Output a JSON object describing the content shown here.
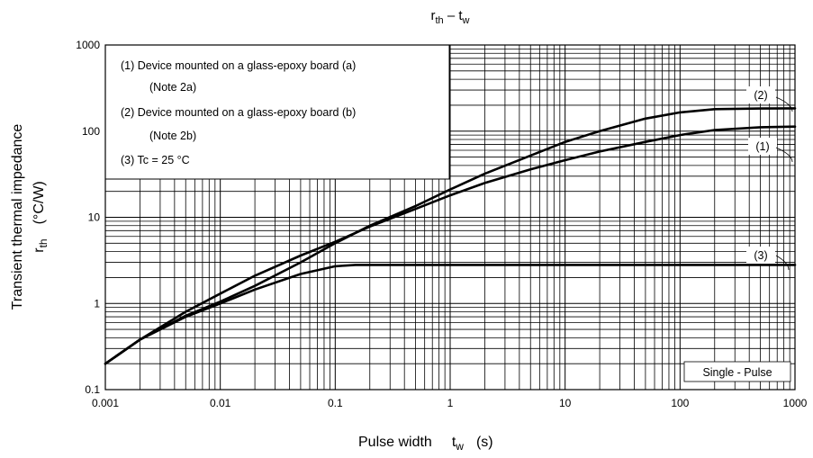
{
  "chart_data": {
    "type": "line",
    "title": "r",
    "title_sub1": "th",
    "title_sep": " – t",
    "title_sub2": "w",
    "xlabel": "Pulse width",
    "xlabel_sym": "t",
    "xlabel_sub": "w",
    "xlabel_unit": "(s)",
    "ylabel_line1": "Transient thermal impedance",
    "ylabel_line2_sym": "r",
    "ylabel_line2_sub": "th",
    "ylabel_line2_unit": "(°C/W)",
    "xscale": "log",
    "yscale": "log",
    "xlim": [
      0.001,
      1000
    ],
    "ylim": [
      0.1,
      1000
    ],
    "grid": true,
    "x_ticks": [
      "0.001",
      "0.01",
      "0.1",
      "1",
      "10",
      "100",
      "1000"
    ],
    "y_ticks": [
      "0.1",
      "1",
      "10",
      "100",
      "1000"
    ],
    "legend_box": {
      "placement": "top-left",
      "lines": [
        "(1) Device mounted on a glass-epoxy board (a)",
        "(Note 2a)",
        "(2) Device mounted on a glass-epoxy board (b)",
        "(Note 2b)",
        "(3) Tc = 25 °C"
      ]
    },
    "annotation": "Single - Pulse",
    "series": [
      {
        "name": "(1)",
        "x": [
          0.001,
          0.002,
          0.005,
          0.01,
          0.02,
          0.05,
          0.1,
          0.2,
          0.5,
          1,
          2,
          5,
          10,
          20,
          50,
          100,
          200,
          500,
          1000
        ],
        "y": [
          0.2,
          0.38,
          0.8,
          1.3,
          2.1,
          3.6,
          5.2,
          7.8,
          12.5,
          18,
          25,
          36,
          46,
          58,
          75,
          90,
          103,
          111,
          113
        ]
      },
      {
        "name": "(2)",
        "x": [
          0.001,
          0.002,
          0.005,
          0.01,
          0.02,
          0.05,
          0.1,
          0.2,
          0.5,
          1,
          2,
          5,
          10,
          20,
          50,
          100,
          200,
          500,
          1000
        ],
        "y": [
          0.2,
          0.38,
          0.72,
          1.05,
          1.6,
          3.0,
          5.0,
          8.0,
          13.5,
          21,
          32,
          52,
          75,
          100,
          140,
          165,
          180,
          183,
          184
        ]
      },
      {
        "name": "(3)",
        "x": [
          0.001,
          0.002,
          0.005,
          0.01,
          0.02,
          0.05,
          0.1,
          0.15,
          0.2,
          0.5,
          1,
          10,
          100,
          1000
        ],
        "y": [
          0.2,
          0.38,
          0.7,
          1.0,
          1.45,
          2.2,
          2.7,
          2.8,
          2.8,
          2.8,
          2.8,
          2.8,
          2.8,
          2.8
        ]
      }
    ]
  }
}
